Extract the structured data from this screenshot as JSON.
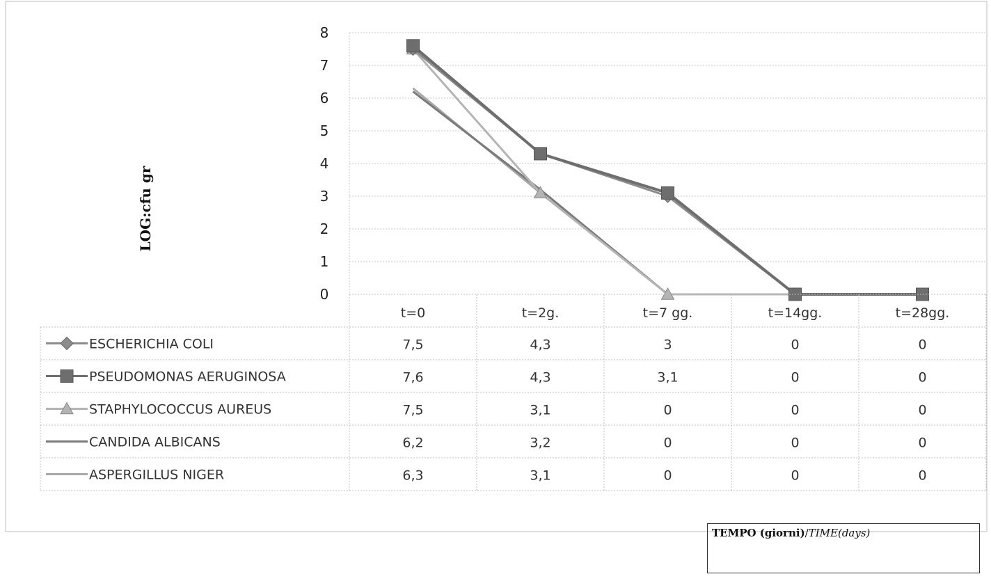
{
  "chart_data": {
    "type": "line",
    "title": "",
    "ylabel": "LOG:cfu gr",
    "xlabel": "TEMPO (giorni)/TIME(days)",
    "xlabel_parts": {
      "bold": "TEMPO (giorni)",
      "sep": "/",
      "italic": "TIME(days)"
    },
    "ylim": [
      0,
      8
    ],
    "yticks": [
      "0",
      "1",
      "2",
      "3",
      "4",
      "5",
      "6",
      "7",
      "8"
    ],
    "categories": [
      "t=0",
      "t=2g.",
      "t=7 gg.",
      "t=14gg.",
      "t=28gg."
    ],
    "grid": true,
    "legend": "data-table-left",
    "series": [
      {
        "name": "ESCHERICHIA COLI",
        "values": [
          7.5,
          4.3,
          3,
          0,
          0
        ],
        "labels": [
          "7,5",
          "4,3",
          "3",
          "0",
          "0"
        ],
        "color": "#8c8c8c",
        "marker": "diamond"
      },
      {
        "name": "PSEUDOMONAS AERUGINOSA",
        "values": [
          7.6,
          4.3,
          3.1,
          0,
          0
        ],
        "labels": [
          "7,6",
          "4,3",
          "3,1",
          "0",
          "0"
        ],
        "color": "#6e6e6e",
        "marker": "square"
      },
      {
        "name": "STAPHYLOCOCCUS AUREUS",
        "values": [
          7.5,
          3.1,
          0,
          0,
          0
        ],
        "labels": [
          "7,5",
          "3,1",
          "0",
          "0",
          "0"
        ],
        "color": "#b4b4b4",
        "marker": "triangle"
      },
      {
        "name": "CANDIDA ALBICANS",
        "values": [
          6.2,
          3.2,
          0,
          0,
          0
        ],
        "labels": [
          "6,2",
          "3,2",
          "0",
          "0",
          "0"
        ],
        "color": "#7a7a7a",
        "marker": "none"
      },
      {
        "name": "ASPERGILLUS NIGER",
        "values": [
          6.3,
          3.1,
          0,
          0,
          0
        ],
        "labels": [
          "6,3",
          "3,1",
          "0",
          "0",
          "0"
        ],
        "color": "#a8a8a8",
        "marker": "none"
      }
    ]
  }
}
